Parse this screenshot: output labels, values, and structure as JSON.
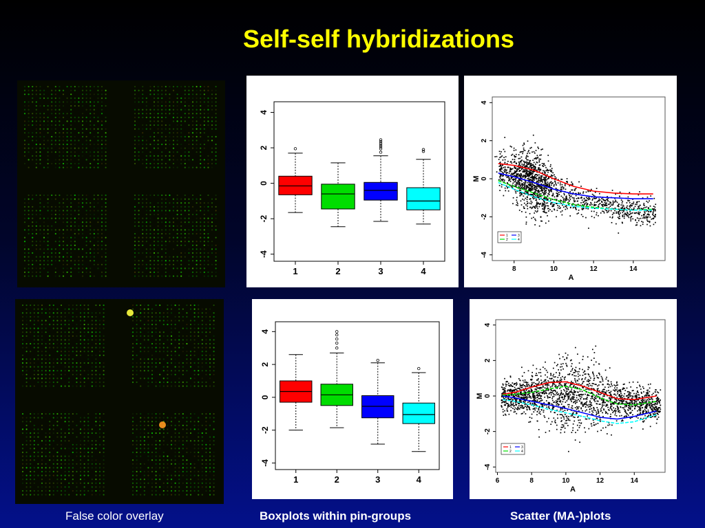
{
  "slide": {
    "title": "Self-self hybridizations",
    "captions": {
      "overlay": "False color overlay",
      "boxplots": "Boxplots within pin-groups",
      "scatter": "Scatter (MA-)plots"
    }
  },
  "colors": {
    "title": "#ffff00",
    "group1": "#ff0000",
    "group2": "#00dd00",
    "group3": "#0000ff",
    "group4": "#00ffff"
  },
  "chart_data": [
    {
      "type": "box",
      "categories": [
        "1",
        "2",
        "3",
        "4"
      ],
      "boxes": [
        {
          "min": -1.65,
          "q1": -0.65,
          "median": -0.15,
          "q3": 0.4,
          "max": 1.7,
          "outliers": [
            1.95
          ]
        },
        {
          "min": -2.45,
          "q1": -1.45,
          "median": -0.6,
          "q3": -0.05,
          "max": 1.15,
          "outliers": []
        },
        {
          "min": -2.15,
          "q1": -0.95,
          "median": -0.4,
          "q3": 0.05,
          "max": 1.55,
          "outliers": [
            1.75,
            1.95,
            2.05,
            2.15,
            2.25,
            2.35,
            2.45
          ]
        },
        {
          "min": -2.3,
          "q1": -1.5,
          "median": -1.0,
          "q3": -0.25,
          "max": 1.35,
          "outliers": [
            1.8,
            1.9
          ]
        }
      ],
      "yticks": [
        "-4",
        "-2",
        "0",
        "2",
        "4"
      ],
      "ylim": [
        -4.4,
        4.6
      ]
    },
    {
      "type": "scatter",
      "xlabel": "A",
      "ylabel": "M",
      "xticks": [
        "8",
        "10",
        "12",
        "14"
      ],
      "yticks": [
        "-4",
        "-2",
        "0",
        "2",
        "4"
      ],
      "xlim": [
        6.9,
        15.6
      ],
      "ylim": [
        -4.3,
        4.3
      ],
      "legend": [
        "1",
        "2",
        "3",
        "4"
      ],
      "loess": [
        {
          "name": "1",
          "x": [
            7.2,
            8,
            9,
            10,
            11,
            12,
            13,
            14,
            15
          ],
          "y": [
            0.8,
            0.7,
            0.45,
            0.0,
            -0.4,
            -0.65,
            -0.75,
            -0.8,
            -0.8
          ]
        },
        {
          "name": "2",
          "x": [
            7.2,
            8,
            9,
            10,
            11,
            12,
            13,
            14,
            15
          ],
          "y": [
            -0.1,
            -0.4,
            -0.75,
            -1.1,
            -1.35,
            -1.5,
            -1.6,
            -1.65,
            -1.6
          ]
        },
        {
          "name": "3",
          "x": [
            7.2,
            8,
            9,
            10,
            11,
            12,
            13,
            14,
            15
          ],
          "y": [
            0.3,
            0.1,
            -0.2,
            -0.55,
            -0.8,
            -0.95,
            -1.0,
            -1.05,
            -1.05
          ]
        },
        {
          "name": "4",
          "x": [
            7.2,
            8,
            9,
            10,
            11,
            12,
            13,
            14,
            15
          ],
          "y": [
            -0.2,
            -0.55,
            -0.95,
            -1.25,
            -1.45,
            -1.55,
            -1.6,
            -1.65,
            -1.65
          ]
        }
      ]
    },
    {
      "type": "box",
      "categories": [
        "1",
        "2",
        "3",
        "4"
      ],
      "boxes": [
        {
          "min": -2.0,
          "q1": -0.3,
          "median": 0.35,
          "q3": 1.0,
          "max": 2.6,
          "outliers": []
        },
        {
          "min": -1.85,
          "q1": -0.5,
          "median": 0.15,
          "q3": 0.8,
          "max": 2.7,
          "outliers": [
            3.0,
            3.3,
            3.55,
            3.8,
            4.0
          ]
        },
        {
          "min": -2.85,
          "q1": -1.25,
          "median": -0.55,
          "q3": 0.1,
          "max": 2.1,
          "outliers": [
            2.25
          ]
        },
        {
          "min": -3.3,
          "q1": -1.6,
          "median": -1.05,
          "q3": -0.35,
          "max": 1.5,
          "outliers": [
            1.75
          ]
        }
      ],
      "yticks": [
        "-4",
        "-2",
        "0",
        "2",
        "4"
      ],
      "ylim": [
        -4.4,
        4.6
      ]
    },
    {
      "type": "scatter",
      "xlabel": "A",
      "ylabel": "M",
      "xticks": [
        "6",
        "8",
        "10",
        "12",
        "14"
      ],
      "yticks": [
        "-4",
        "-2",
        "0",
        "2",
        "4"
      ],
      "xlim": [
        5.9,
        15.8
      ],
      "ylim": [
        -4.3,
        4.3
      ],
      "legend": [
        "1",
        "2",
        "3",
        "4"
      ],
      "loess": [
        {
          "name": "1",
          "x": [
            6.3,
            7,
            8,
            9,
            10,
            11,
            12,
            13,
            14,
            15.3
          ],
          "y": [
            0.1,
            0.2,
            0.5,
            0.75,
            0.8,
            0.55,
            0.2,
            -0.15,
            -0.2,
            0.0
          ]
        },
        {
          "name": "2",
          "x": [
            6.3,
            7,
            8,
            9,
            10,
            11,
            12,
            13,
            14,
            15.3
          ],
          "y": [
            0.05,
            0.1,
            0.2,
            0.4,
            0.55,
            0.35,
            -0.1,
            -0.45,
            -0.5,
            -0.3
          ]
        },
        {
          "name": "3",
          "x": [
            6.3,
            7,
            8,
            9,
            10,
            11,
            12,
            13,
            14,
            15.3
          ],
          "y": [
            0.0,
            -0.1,
            -0.3,
            -0.5,
            -0.7,
            -0.95,
            -1.2,
            -1.3,
            -1.15,
            -0.85
          ]
        },
        {
          "name": "4",
          "x": [
            6.3,
            7,
            8,
            9,
            10,
            11,
            12,
            13,
            14,
            15.3
          ],
          "y": [
            -0.2,
            -0.3,
            -0.5,
            -0.75,
            -0.95,
            -1.15,
            -1.4,
            -1.55,
            -1.45,
            -1.05
          ]
        }
      ]
    }
  ]
}
